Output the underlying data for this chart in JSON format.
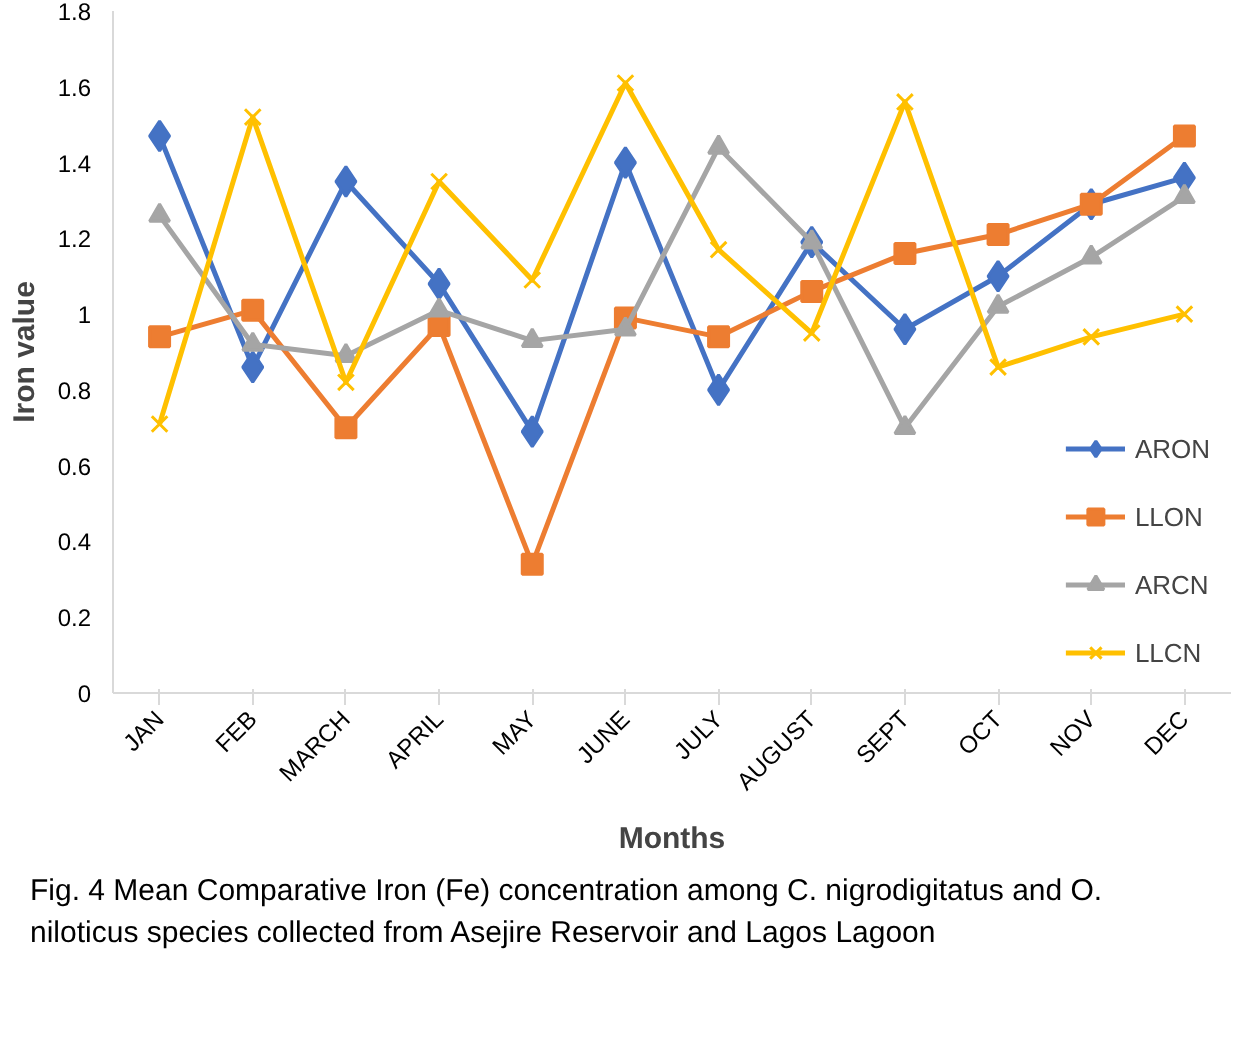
{
  "chart_data": {
    "type": "line",
    "xlabel": "Months",
    "ylabel": "Iron value",
    "categories": [
      "JAN",
      "FEB",
      "MARCH",
      "APRIL",
      "MAY",
      "JUNE",
      "JULY",
      "AUGUST",
      "SEPT",
      "OCT",
      "NOV",
      "DEC"
    ],
    "ylim": [
      0,
      1.8
    ],
    "yticks": [
      0,
      0.2,
      0.4,
      0.6,
      0.8,
      1,
      1.2,
      1.4,
      1.6,
      1.8
    ],
    "grid": false,
    "legend": "right",
    "line_style": "solid",
    "series": [
      {
        "name": "ARON",
        "color": "#4472c4",
        "marker": "diamond",
        "values": [
          1.47,
          0.86,
          1.35,
          1.08,
          0.69,
          1.4,
          0.8,
          1.19,
          0.96,
          1.1,
          1.29,
          1.36
        ]
      },
      {
        "name": "LLON",
        "color": "#ed7d31",
        "marker": "square",
        "values": [
          0.94,
          1.01,
          0.7,
          0.97,
          0.34,
          0.99,
          0.94,
          1.06,
          1.16,
          1.21,
          1.29,
          1.47
        ]
      },
      {
        "name": "ARCN",
        "color": "#a5a5a5",
        "marker": "triangle",
        "values": [
          1.26,
          0.92,
          0.89,
          1.01,
          0.93,
          0.96,
          1.44,
          1.19,
          0.7,
          1.02,
          1.15,
          1.31
        ]
      },
      {
        "name": "LLCN",
        "color": "#ffc000",
        "marker": "cross",
        "values": [
          0.71,
          1.52,
          0.82,
          1.35,
          1.09,
          1.61,
          1.17,
          0.95,
          1.56,
          0.86,
          0.94,
          1.0
        ]
      }
    ],
    "annotations": [
      "Fig. 4  Mean Comparative Iron (Fe) concentration among C. nigrodigitatus and O. niloticus species collected from Asejire Reservoir and Lagos Lagoon"
    ]
  }
}
